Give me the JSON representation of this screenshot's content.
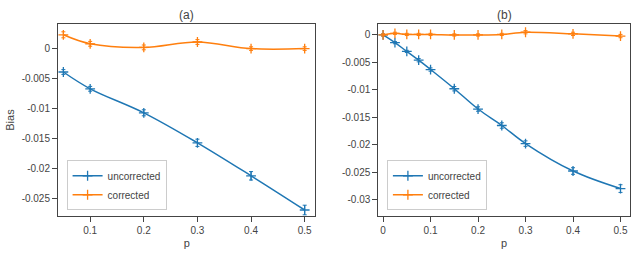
{
  "chart_data": [
    {
      "type": "line",
      "title": "(a)",
      "x_label": "p",
      "y_label": "Bias",
      "x": [
        0.05,
        0.1,
        0.2,
        0.3,
        0.4,
        0.5
      ],
      "series": [
        {
          "name": "uncorrected",
          "color": "#1f77b4",
          "marker": "plus",
          "values": [
            -0.004,
            -0.0068,
            -0.0108,
            -0.0158,
            -0.0213,
            -0.027
          ],
          "yerr": [
            0.0004,
            0.0004,
            0.0005,
            0.0006,
            0.0007,
            0.0008
          ]
        },
        {
          "name": "corrected",
          "color": "#ff7f0e",
          "marker": "plus",
          "values": [
            0.0022,
            0.0007,
            0.0001,
            0.001,
            -0.0001,
            -0.0001
          ],
          "yerr": [
            0.0005,
            0.0004,
            0.0004,
            0.0004,
            0.0003,
            0.0003
          ]
        }
      ],
      "xlim": [
        0.04,
        0.52
      ],
      "xticks": [
        0.1,
        0.2,
        0.3,
        0.4,
        0.5
      ],
      "ylim": [
        -0.028,
        0.004
      ],
      "yticks": [
        -0.025,
        -0.02,
        -0.015,
        -0.01,
        -0.005,
        0
      ],
      "grid": false,
      "legend": "lower left"
    },
    {
      "type": "line",
      "title": "(b)",
      "x_label": "p",
      "x": [
        0.0,
        0.025,
        0.05,
        0.075,
        0.1,
        0.15,
        0.2,
        0.25,
        0.3,
        0.4,
        0.5
      ],
      "series": [
        {
          "name": "uncorrected",
          "color": "#1f77b4",
          "marker": "plus",
          "values": [
            0.0,
            -0.0014,
            -0.003,
            -0.0046,
            -0.0063,
            -0.0098,
            -0.0135,
            -0.0165,
            -0.0198,
            -0.0248,
            -0.028
          ],
          "yerr": [
            0.0002,
            0.0002,
            0.0002,
            0.0003,
            0.0003,
            0.0004,
            0.0004,
            0.0005,
            0.0005,
            0.0006,
            0.0007
          ]
        },
        {
          "name": "corrected",
          "color": "#ff7f0e",
          "marker": "plus",
          "values": [
            0.0,
            0.0003,
            0.0001,
            0.0001,
            0.0001,
            0.0,
            0.0,
            0.0001,
            0.0005,
            0.0002,
            -0.0002
          ],
          "yerr": [
            0.0002,
            0.0002,
            0.0002,
            0.0002,
            0.0002,
            0.0002,
            0.0002,
            0.0002,
            0.0003,
            0.0003,
            0.0003
          ]
        }
      ],
      "xlim": [
        -0.01,
        0.52
      ],
      "xticks": [
        0,
        0.1,
        0.2,
        0.3,
        0.4,
        0.5
      ],
      "ylim": [
        -0.033,
        0.002
      ],
      "yticks": [
        -0.03,
        -0.025,
        -0.02,
        -0.015,
        -0.01,
        -0.005,
        0
      ],
      "grid": false,
      "legend": "lower left"
    }
  ]
}
